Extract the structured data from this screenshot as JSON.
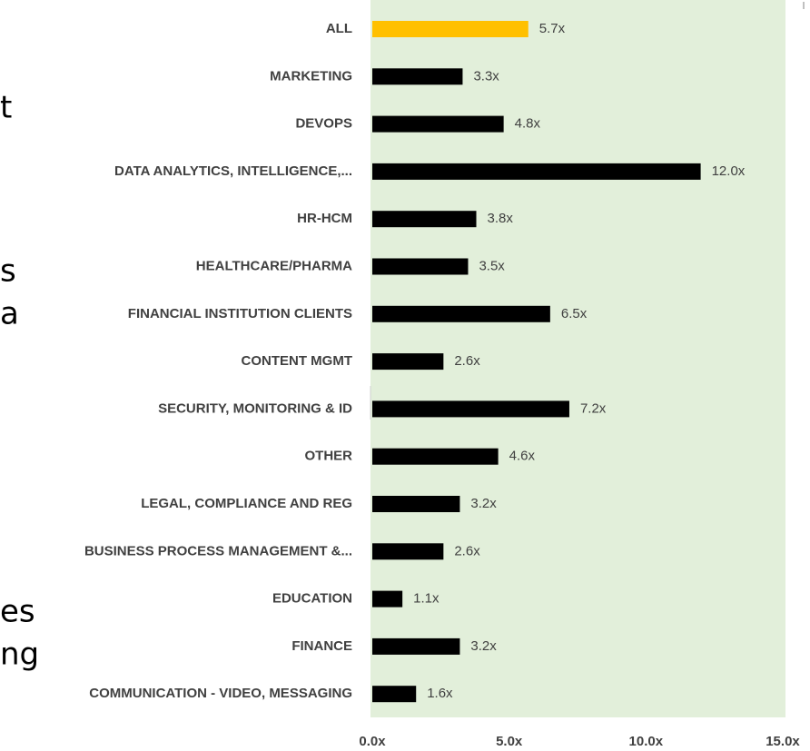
{
  "chart_data": {
    "type": "hbar",
    "categories": [
      "ALL",
      "MARKETING",
      "DEVOPS",
      "DATA ANALYTICS, INTELLIGENCE,...",
      "HR-HCM",
      "HEALTHCARE/PHARMA",
      "FINANCIAL INSTITUTION CLIENTS",
      "CONTENT MGMT",
      "SECURITY, MONITORING & ID",
      "OTHER",
      "LEGAL, COMPLIANCE AND REG",
      "BUSINESS PROCESS MANAGEMENT &...",
      "EDUCATION",
      "FINANCE",
      "COMMUNICATION - VIDEO, MESSAGING"
    ],
    "values": [
      5.7,
      3.3,
      4.8,
      12.0,
      3.8,
      3.5,
      6.5,
      2.6,
      7.2,
      4.6,
      3.2,
      2.6,
      1.1,
      3.2,
      1.6
    ],
    "value_labels": [
      "5.7x",
      "3.3x",
      "4.8x",
      "12.0x",
      "3.8x",
      "3.5x",
      "6.5x",
      "2.6x",
      "7.2x",
      "4.6x",
      "3.2x",
      "2.6x",
      "1.1x",
      "3.2x",
      "1.6x"
    ],
    "colors": [
      "#ffc000",
      "#000000",
      "#000000",
      "#000000",
      "#000000",
      "#000000",
      "#000000",
      "#000000",
      "#000000",
      "#000000",
      "#000000",
      "#000000",
      "#000000",
      "#000000",
      "#000000"
    ],
    "xlim": [
      0,
      15
    ],
    "xticks": [
      {
        "value": 0,
        "label": "0.0x"
      },
      {
        "value": 5,
        "label": "5.0x"
      },
      {
        "value": 10,
        "label": "10.0x"
      },
      {
        "value": 15,
        "label": "15.0x"
      }
    ],
    "plot_background": "#e2efda"
  },
  "background_fragments": [
    "t",
    "s",
    "a",
    "es",
    "ng"
  ]
}
